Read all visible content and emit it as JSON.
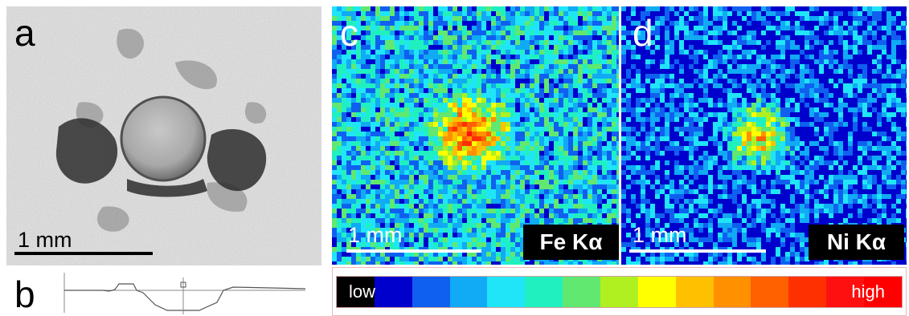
{
  "panels": {
    "a": {
      "label": "a",
      "scale_label": "1 mm"
    },
    "b": {
      "label": "b"
    },
    "c": {
      "label": "c",
      "scale_label": "1 mm",
      "element": "Fe Kα"
    },
    "d": {
      "label": "d",
      "scale_label": "1 mm",
      "element": "Ni Kα"
    }
  },
  "legend": {
    "low_label": "low",
    "high_label": "high",
    "colors": [
      "#000000",
      "#0000cc",
      "#1060f0",
      "#10aaf5",
      "#20e5f8",
      "#20f0c0",
      "#60e870",
      "#b0f020",
      "#ffff00",
      "#ffc000",
      "#ff9000",
      "#ff6000",
      "#ff3000",
      "#ff1010",
      "#ff0000"
    ]
  }
}
